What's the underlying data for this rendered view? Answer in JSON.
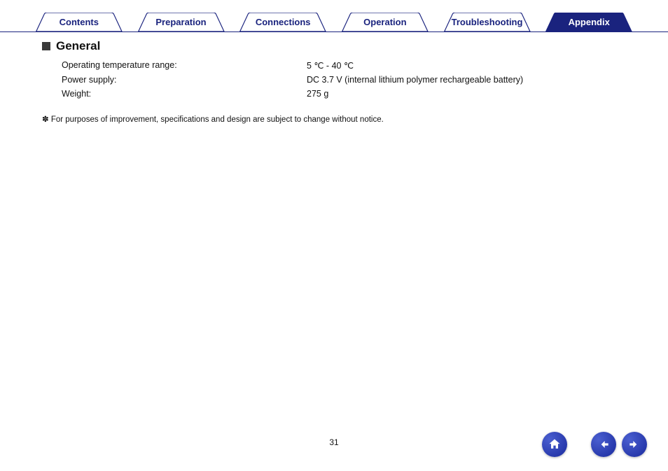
{
  "tabs": [
    {
      "label": "Contents",
      "active": false
    },
    {
      "label": "Preparation",
      "active": false
    },
    {
      "label": "Connections",
      "active": false
    },
    {
      "label": "Operation",
      "active": false
    },
    {
      "label": "Troubleshooting",
      "active": false
    },
    {
      "label": "Appendix",
      "active": true
    }
  ],
  "tab_colors": {
    "inactive_fill": "#ffffff",
    "inactive_stroke": "#1a237e",
    "inactive_text": "#1a237e",
    "active_fill": "#1a237e",
    "active_text": "#ffffff"
  },
  "section": {
    "title": "General",
    "specs": [
      {
        "label": "Operating temperature range:",
        "value": "5 ℃ - 40 ℃"
      },
      {
        "label": "Power supply:",
        "value": "DC 3.7 V (internal lithium polymer rechargeable battery)"
      },
      {
        "label": "Weight:",
        "value": "275 g"
      }
    ],
    "footnote_prefix": "✽",
    "footnote": "For purposes of improvement, specifications and design are subject to change without notice."
  },
  "page_number": "31",
  "nav": {
    "home_label": "home",
    "prev_label": "previous",
    "next_label": "next",
    "button_gradient_start": "#4a5fd0",
    "button_gradient_end": "#1a2a9e",
    "icon_color": "#ffffff"
  }
}
